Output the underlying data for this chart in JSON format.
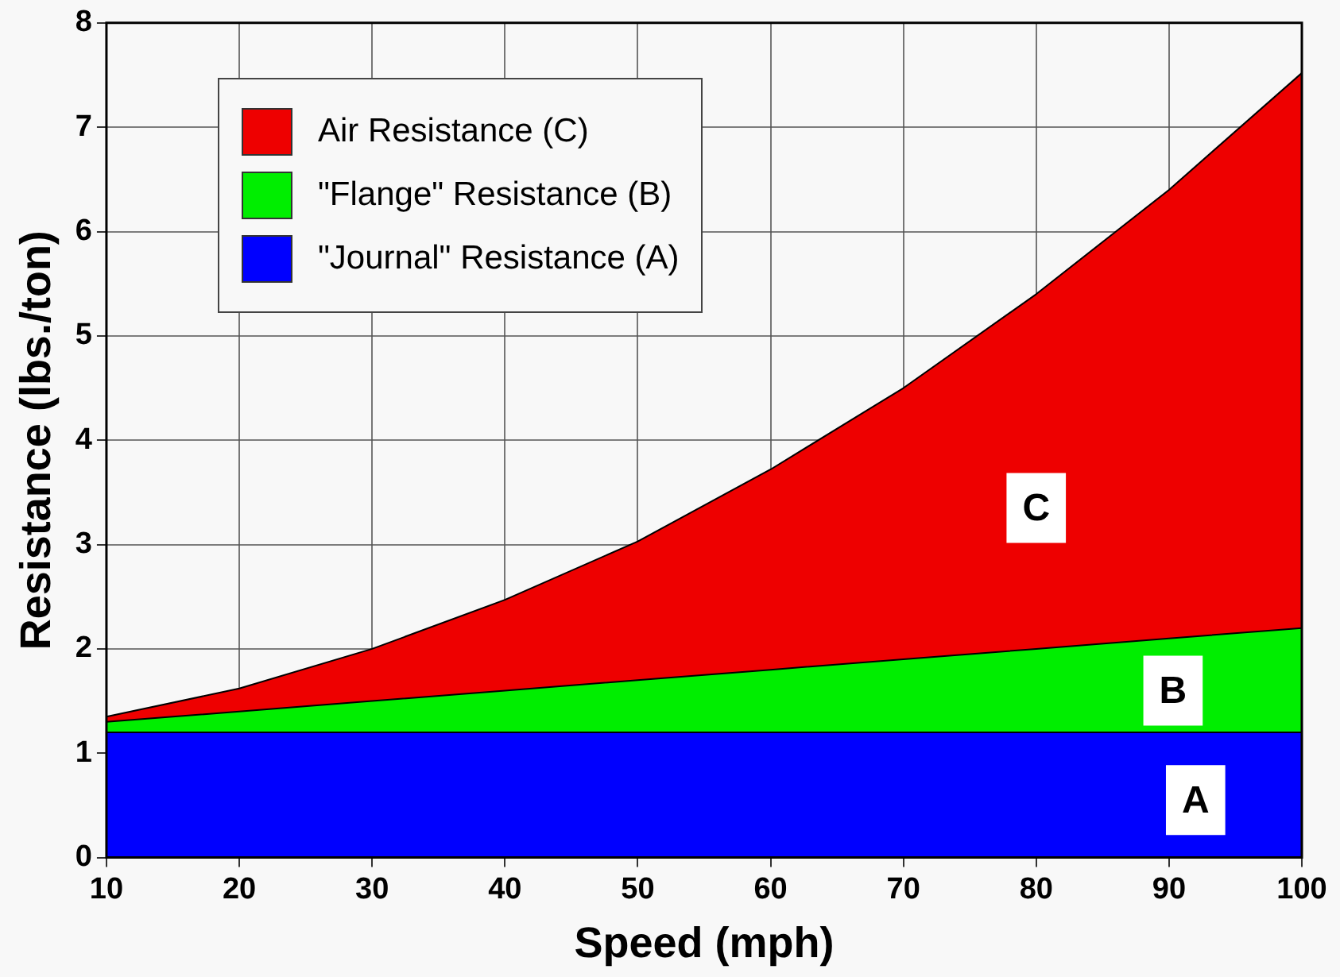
{
  "chart_data": {
    "type": "area",
    "stacked": true,
    "xlabel": "Speed (mph)",
    "ylabel": "Resistance (lbs./ton)",
    "x": [
      10,
      20,
      30,
      40,
      50,
      60,
      70,
      80,
      90,
      100
    ],
    "series": [
      {
        "name": "\"Journal\" Resistance (A)",
        "color": "#0000ff",
        "values": [
          1.2,
          1.2,
          1.2,
          1.2,
          1.2,
          1.2,
          1.2,
          1.2,
          1.2,
          1.2
        ]
      },
      {
        "name": "\"Flange\" Resistance (B)",
        "color": "#00ee00",
        "values": [
          0.1,
          0.2,
          0.3,
          0.4,
          0.5,
          0.6,
          0.7,
          0.8,
          0.9,
          1.0
        ]
      },
      {
        "name": "Air Resistance (C)",
        "color": "#ee0000",
        "values": [
          0.05,
          0.22,
          0.5,
          0.87,
          1.33,
          1.92,
          2.6,
          3.4,
          4.3,
          5.32
        ]
      }
    ],
    "xlim": [
      10,
      100
    ],
    "xticks": [
      10,
      20,
      30,
      40,
      50,
      60,
      70,
      80,
      90,
      100
    ],
    "ylim": [
      0,
      8
    ],
    "yticks": [
      0,
      1,
      2,
      3,
      4,
      5,
      6,
      7,
      8
    ],
    "grid": true,
    "legend": "top left",
    "annotations": [
      {
        "text": "C",
        "x": 80,
        "y": 3.35
      },
      {
        "text": "B",
        "x": 90.3,
        "y": 1.6
      },
      {
        "text": "A",
        "x": 92,
        "y": 0.55
      }
    ]
  }
}
